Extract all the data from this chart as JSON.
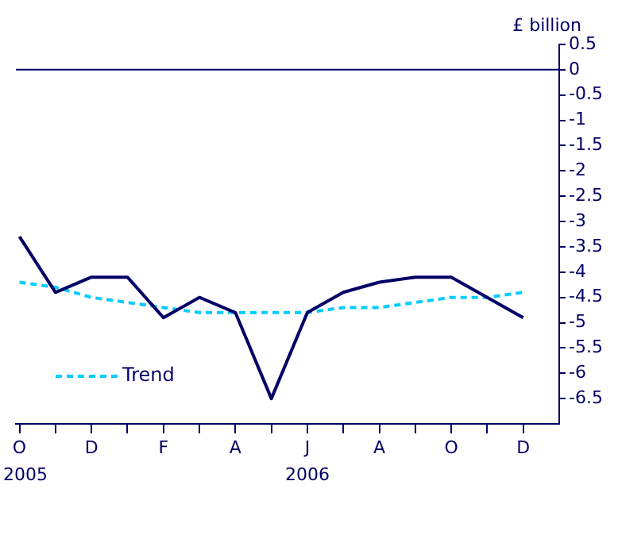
{
  "chart_data": {
    "type": "line",
    "ylabel": "£ billion",
    "categories": [
      "O",
      null,
      "D",
      null,
      "F",
      null,
      "A",
      null,
      "J",
      null,
      "A",
      null,
      "O",
      null,
      "D"
    ],
    "series": [
      {
        "color": "#000066",
        "line_style": "solid",
        "values": [
          -3.3,
          -4.4,
          -4.1,
          -4.1,
          -4.9,
          -4.5,
          -4.8,
          -6.5,
          -4.8,
          -4.4,
          -4.2,
          -4.1,
          -4.1,
          -4.5,
          -4.9
        ]
      },
      {
        "name": "Trend",
        "color": "#00ccff",
        "line_style": "dashed",
        "values": [
          -4.2,
          -4.3,
          -4.5,
          -4.6,
          -4.7,
          -4.8,
          -4.8,
          -4.8,
          -4.8,
          -4.7,
          -4.7,
          -4.6,
          -4.5,
          -4.5,
          -4.4
        ]
      }
    ],
    "ylim": [
      -7,
      0.5
    ],
    "yticks": [
      0.5,
      0,
      -0.5,
      -1,
      -1.5,
      -2,
      -2.5,
      -3,
      -3.5,
      -4,
      -4.5,
      -5,
      -5.5,
      -6,
      -6.5
    ],
    "ref_lines": [
      {
        "axis": "y",
        "value": 0,
        "color": "#000066"
      }
    ],
    "annotations": [
      "2005",
      "2006"
    ],
    "grid": false,
    "legend": "bottom left",
    "marker": "none"
  }
}
